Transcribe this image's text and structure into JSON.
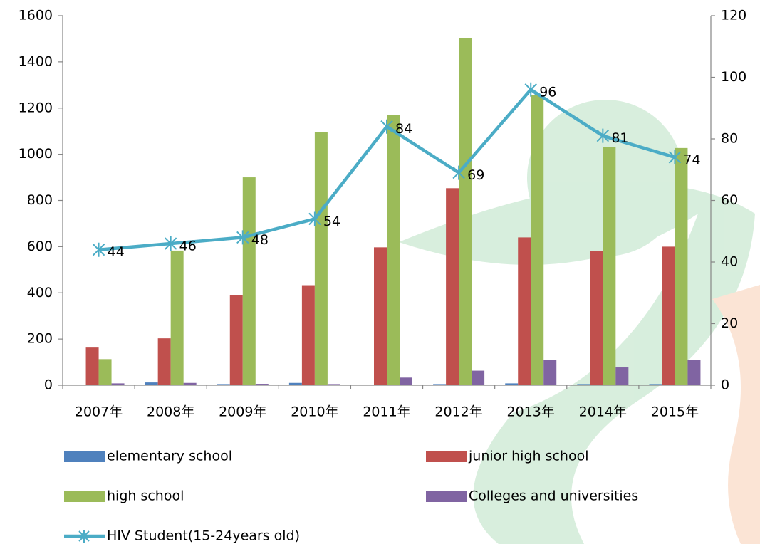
{
  "chart_data": {
    "type": "bar",
    "categories": [
      "2007年",
      "2008年",
      "2009年",
      "2010年",
      "2011年",
      "2012年",
      "2013年",
      "2014年",
      "2015年"
    ],
    "series": [
      {
        "name": "elementary school",
        "color": "#4f81bd",
        "values": [
          3,
          12,
          5,
          10,
          3,
          5,
          8,
          5,
          5
        ]
      },
      {
        "name": "junior high school",
        "color": "#c0504d",
        "values": [
          163,
          203,
          390,
          433,
          597,
          853,
          640,
          580,
          600
        ]
      },
      {
        "name": "high school",
        "color": "#9bbb59",
        "values": [
          113,
          583,
          900,
          1097,
          1170,
          1503,
          1257,
          1030,
          1027
        ]
      },
      {
        "name": "Colleges and universities",
        "color": "#8064a2",
        "values": [
          8,
          10,
          6,
          5,
          33,
          63,
          110,
          77,
          110
        ]
      },
      {
        "name": "HIV Student(15-24years old)",
        "color": "#4bacc6",
        "type": "line",
        "axis": "y2",
        "values": [
          44,
          46,
          48,
          54,
          84,
          69,
          96,
          81,
          74
        ]
      }
    ],
    "ylim": [
      0,
      1600
    ],
    "yticks": [
      0,
      200,
      400,
      600,
      800,
      1000,
      1200,
      1400,
      1600
    ],
    "y2lim": [
      0,
      120
    ],
    "y2ticks": [
      0,
      20,
      40,
      60,
      80,
      100,
      120
    ],
    "grid": false,
    "legend": "bottom"
  }
}
